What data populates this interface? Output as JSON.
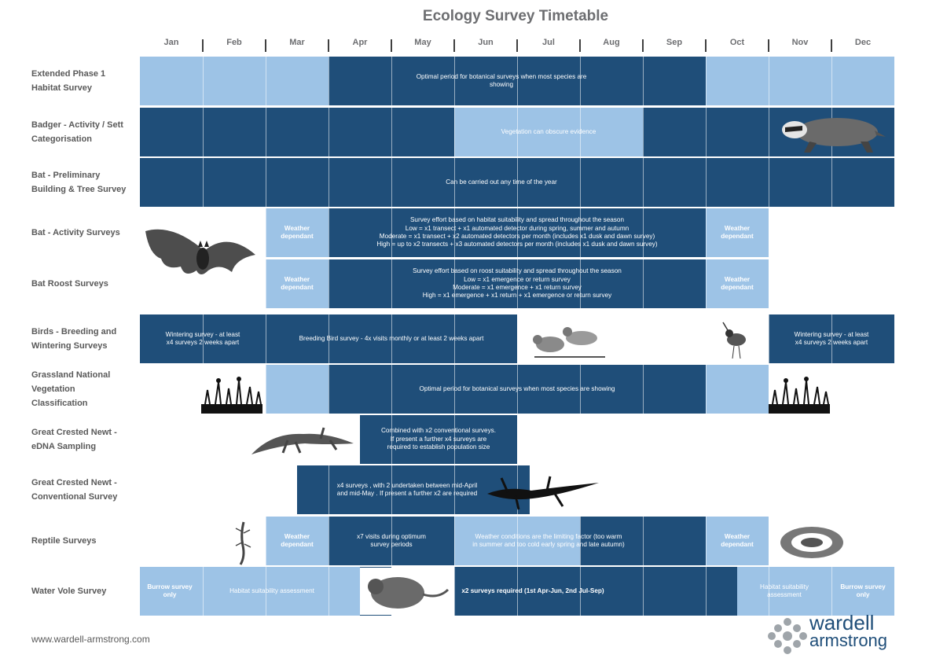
{
  "title": "Ecology Survey Timetable",
  "months": [
    "Jan",
    "Feb",
    "Mar",
    "Apr",
    "May",
    "Jun",
    "Jul",
    "Aug",
    "Sep",
    "Oct",
    "Nov",
    "Dec"
  ],
  "rows": [
    {
      "label": "Extended Phase 1\nHabitat Survey",
      "notes": [
        "Optimal period for botanical surveys when most species are\nshowing"
      ]
    },
    {
      "label": "Badger - Activity / Sett\nCategorisation",
      "notes": [
        "Vegetation can obscure evidence"
      ]
    },
    {
      "label": "Bat - Preliminary\nBuilding & Tree Survey",
      "notes": [
        "Can be carried out any time of the year"
      ]
    },
    {
      "label": "Bat - Activity Surveys",
      "notes": [
        "Weather\ndependant",
        "Survey effort based on habitat suitability and spread throughout the season\nLow = x1 transect + x1 automated detector during spring, summer and autumn\nModerate = x1 transect + x2 automated detectors per month (includes x1 dusk and dawn survey)\nHigh = up to x2 transects + x3 automated detectors per month (includes x1 dusk and dawn survey)",
        "Weather\ndependant"
      ]
    },
    {
      "label": "Bat Roost Surveys",
      "notes": [
        "Weather\ndependant",
        "Survey effort based on roost suitability and spread throughout the season\nLow = x1 emergence or return survey\nModerate = x1 emergence + x1 return survey\nHigh = x1 emergence + x1 return + x1 emergence or return survey",
        "Weather\ndependant"
      ]
    },
    {
      "label": "Birds - Breeding and\nWintering Surveys",
      "notes": [
        "Wintering survey - at least\nx4 surveys 2 weeks apart",
        "Breeding Bird survey - 4x visits monthly or at least 2 weeks apart",
        "Wintering survey - at least\nx4 surveys 2 weeks apart"
      ]
    },
    {
      "label": "Grassland National\nVegetation\nClassification",
      "notes": [
        "Optimal period for botanical surveys when most species are showing"
      ]
    },
    {
      "label": "Great Crested Newt -\neDNA Sampling",
      "notes": [
        "Combined with x2 conventional surveys.\nIf present a further x4 surveys are\nrequired to establish population size"
      ]
    },
    {
      "label": "Great Crested Newt -\nConventional Survey",
      "notes": [
        "x4 surveys , with 2 undertaken between mid-April\nand mid-May . If present a further x2 are required"
      ]
    },
    {
      "label": "Reptile Surveys",
      "notes": [
        "Weather\ndependant",
        "x7 visits during optimum\nsurvey periods",
        "Weather conditions are the limiting factor (too warm\nin summer  and too cold early spring and late autumn)",
        "Weather\ndependant"
      ]
    },
    {
      "label": "Water Vole Survey",
      "notes": [
        "Burrow survey\nonly",
        "Habitat suitability assessment",
        "x2 surveys required (1st Apr-Jun, 2nd Jul-Sep)",
        "Habitat suitability\nassessment",
        "Burrow survey\nonly"
      ]
    }
  ],
  "footer": {
    "url": "www.wardell-armstrong.com"
  },
  "logo": {
    "line1": "wardell",
    "line2": "armstrong"
  },
  "colors": {
    "light": "#9dc3e6",
    "dark": "#1f4e79",
    "text": "#595959"
  }
}
